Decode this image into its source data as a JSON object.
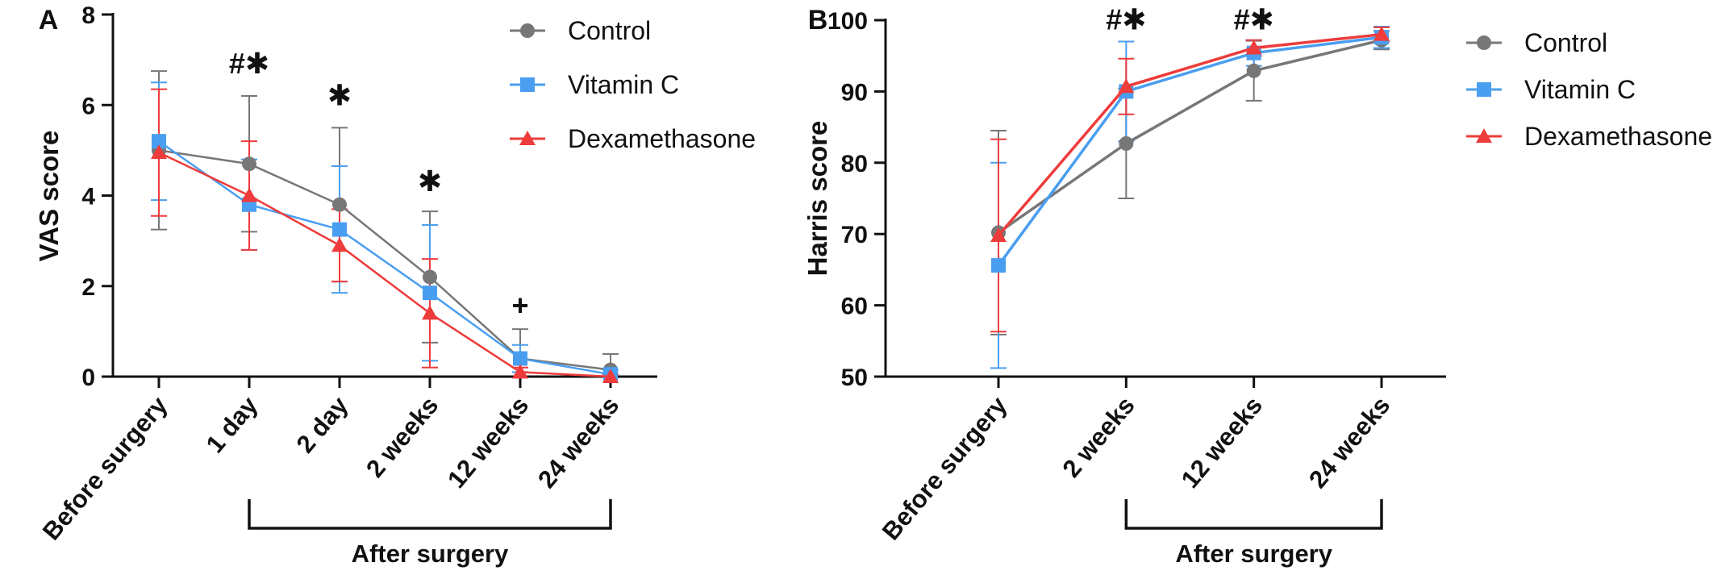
{
  "chart_data": [
    {
      "type": "line",
      "panel_label": "A",
      "ylabel": "VAS score",
      "ylim": [
        0,
        8
      ],
      "yticks": [
        0,
        2,
        4,
        6,
        8
      ],
      "categories": [
        "Before surgery",
        "1 day",
        "2 day",
        "2 weeks",
        "12 weeks",
        "24 weeks"
      ],
      "bracket_label": "After surgery",
      "bracket_span": [
        "1 day",
        "24 weeks"
      ],
      "legend_position": "top-right",
      "series": [
        {
          "name": "Control",
          "color": "#777777",
          "marker": "circle",
          "values": [
            5.0,
            4.7,
            3.8,
            2.2,
            0.4,
            0.15
          ],
          "errors": [
            1.75,
            1.5,
            1.7,
            1.45,
            0.65,
            0.35
          ]
        },
        {
          "name": "Vitamin C",
          "color": "#4a9ef0",
          "marker": "square",
          "values": [
            5.2,
            3.8,
            3.25,
            1.85,
            0.4,
            0.05
          ],
          "errors": [
            1.3,
            1.0,
            1.4,
            1.5,
            0.3,
            0.1
          ]
        },
        {
          "name": "Dexamethasone",
          "color": "#ee3b3b",
          "marker": "triangle",
          "values": [
            4.95,
            4.0,
            2.9,
            1.4,
            0.1,
            0.0
          ],
          "errors": [
            1.4,
            1.2,
            0.8,
            1.2,
            0.1,
            0.05
          ]
        }
      ],
      "annotations": [
        {
          "category": "1 day",
          "text": "#✱",
          "y": 6.7
        },
        {
          "category": "2 day",
          "text": "✱",
          "y": 6.0
        },
        {
          "category": "2 weeks",
          "text": "✱",
          "y": 4.1
        },
        {
          "category": "12 weeks",
          "text": "+",
          "y": 1.35
        }
      ]
    },
    {
      "type": "line",
      "panel_label": "B",
      "ylabel": "Harris score",
      "ylim": [
        50,
        100
      ],
      "yticks": [
        50,
        60,
        70,
        80,
        90,
        100
      ],
      "categories": [
        "Before surgery",
        "2 weeks",
        "12 weeks",
        "24 weeks"
      ],
      "bracket_label": "After surgery",
      "bracket_span": [
        "2 weeks",
        "24 weeks"
      ],
      "legend_position": "top-right",
      "series": [
        {
          "name": "Control",
          "color": "#777777",
          "marker": "circle",
          "values": [
            70.2,
            82.7,
            92.9,
            97.2
          ],
          "errors": [
            14.3,
            7.7,
            4.2,
            1.3
          ]
        },
        {
          "name": "Vitamin C",
          "color": "#4a9ef0",
          "marker": "square",
          "values": [
            65.6,
            90.0,
            95.4,
            97.6
          ],
          "errors": [
            14.4,
            7.0,
            1.8,
            1.5
          ]
        },
        {
          "name": "Dexamethasone",
          "color": "#ee3b3b",
          "marker": "triangle",
          "values": [
            69.8,
            90.7,
            96.1,
            98.0
          ],
          "errors": [
            13.5,
            3.9,
            1.1,
            1.0
          ]
        }
      ],
      "annotations": [
        {
          "category": "2 weeks",
          "text": "#✱",
          "y": 98.7
        },
        {
          "category": "12 weeks",
          "text": "#✱",
          "y": 98.7
        }
      ]
    }
  ]
}
